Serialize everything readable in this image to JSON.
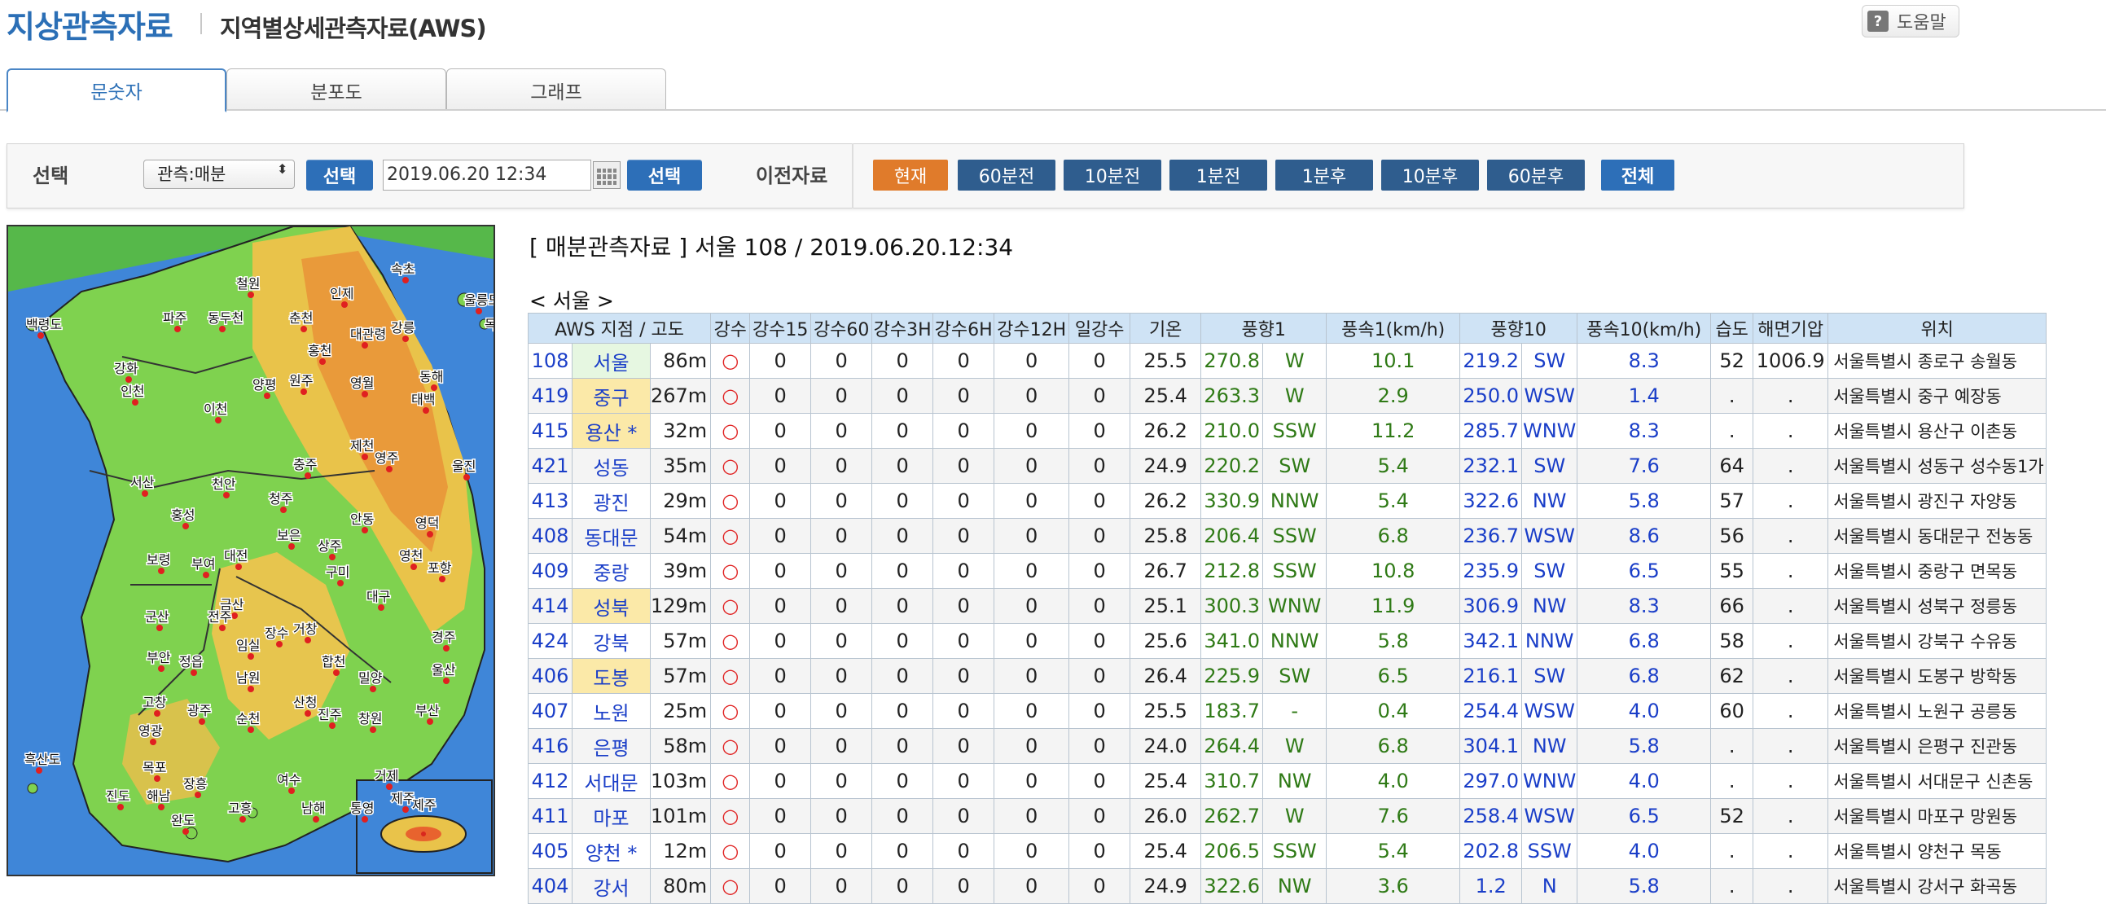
{
  "header": {
    "title": "지상관측자료",
    "subtitle": "지역별상세관측자료(AWS)",
    "help_label": "도움말",
    "help_icon_text": "?"
  },
  "tabs": [
    {
      "label": "문숫자",
      "active": true
    },
    {
      "label": "분포도",
      "active": false
    },
    {
      "label": "그래프",
      "active": false
    }
  ],
  "controls": {
    "select_label": "선택",
    "obs_select_value": "관측:매분",
    "select_button": "선택",
    "datetime_value": "2019.06.20 12:34",
    "select_button2": "선택",
    "prev_label": "이전자료",
    "nav_buttons": [
      "현재",
      "60분전",
      "10분전",
      "1분전",
      "1분후",
      "10분후",
      "60분후",
      "전체"
    ]
  },
  "map": {
    "labels": [
      "속초",
      "철원",
      "인제",
      "춘천",
      "대관령",
      "강릉",
      "동두천",
      "파주",
      "백령도",
      "홍천",
      "동해",
      "원주",
      "영월",
      "울릉도",
      "독도",
      "인천",
      "태백",
      "양평",
      "이천",
      "강화",
      "서산",
      "천안",
      "청주",
      "충주",
      "제천",
      "영주",
      "울진",
      "홍성",
      "보은",
      "상주",
      "안동",
      "영덕",
      "대전",
      "보령",
      "구미",
      "금산",
      "포항",
      "대구",
      "영천",
      "부여",
      "군산",
      "전주",
      "임실",
      "장수",
      "거창",
      "합천",
      "경주",
      "울산",
      "부안",
      "정읍",
      "남원",
      "밀양",
      "산청",
      "진주",
      "창원",
      "부산",
      "고창",
      "광주",
      "순천",
      "영광",
      "목포",
      "장흥",
      "해남",
      "여수",
      "남해",
      "통영",
      "거제",
      "흑산도",
      "진도",
      "고흥",
      "완도",
      "제주",
      "흑산도",
      "진도"
    ],
    "inset_label": "제주"
  },
  "table": {
    "title": "[ 매분관측자료 ] 서울 108 / 2019.06.20.12:34",
    "region_label": "< 서울 >",
    "headers": [
      "AWS 지점 / 고도",
      "강수",
      "강수15",
      "강수60",
      "강수3H",
      "강수6H",
      "강수12H",
      "일강수",
      "기온",
      "풍향1",
      "풍속1(km/h)",
      "풍향10",
      "풍속10(km/h)",
      "습도",
      "해면기압",
      "위치"
    ],
    "rows": [
      {
        "id": "108",
        "name": "서울",
        "alt": "86m",
        "rain": "○",
        "r15": "0",
        "r60": "0",
        "r3h": "0",
        "r6h": "0",
        "r12h": "0",
        "rday": "0",
        "temp": "25.5",
        "wd1": "270.8",
        "wdn1": "W",
        "ws1": "10.1",
        "wd10": "219.2",
        "wdn10": "SW",
        "ws10": "8.3",
        "hum": "52",
        "pres": "1006.9",
        "loc": "서울특별시 종로구 송월동",
        "hl": "green"
      },
      {
        "id": "419",
        "name": "중구",
        "alt": "267m",
        "rain": "○",
        "r15": "0",
        "r60": "0",
        "r3h": "0",
        "r6h": "0",
        "r12h": "0",
        "rday": "0",
        "temp": "25.4",
        "wd1": "263.3",
        "wdn1": "W",
        "ws1": "2.9",
        "wd10": "250.0",
        "wdn10": "WSW",
        "ws10": "1.4",
        "hum": ".",
        "pres": ".",
        "loc": "서울특별시 중구 예장동",
        "hl": "yellow"
      },
      {
        "id": "415",
        "name": "용산 *",
        "alt": "32m",
        "rain": "○",
        "r15": "0",
        "r60": "0",
        "r3h": "0",
        "r6h": "0",
        "r12h": "0",
        "rday": "0",
        "temp": "26.2",
        "wd1": "210.0",
        "wdn1": "SSW",
        "ws1": "11.2",
        "wd10": "285.7",
        "wdn10": "WNW",
        "ws10": "8.3",
        "hum": ".",
        "pres": ".",
        "loc": "서울특별시 용산구 이촌동",
        "hl": "yellow"
      },
      {
        "id": "421",
        "name": "성동",
        "alt": "35m",
        "rain": "○",
        "r15": "0",
        "r60": "0",
        "r3h": "0",
        "r6h": "0",
        "r12h": "0",
        "rday": "0",
        "temp": "24.9",
        "wd1": "220.2",
        "wdn1": "SW",
        "ws1": "5.4",
        "wd10": "232.1",
        "wdn10": "SW",
        "ws10": "7.6",
        "hum": "64",
        "pres": ".",
        "loc": "서울특별시 성동구 성수동1가",
        "hl": ""
      },
      {
        "id": "413",
        "name": "광진",
        "alt": "29m",
        "rain": "○",
        "r15": "0",
        "r60": "0",
        "r3h": "0",
        "r6h": "0",
        "r12h": "0",
        "rday": "0",
        "temp": "26.2",
        "wd1": "330.9",
        "wdn1": "NNW",
        "ws1": "5.4",
        "wd10": "322.6",
        "wdn10": "NW",
        "ws10": "5.8",
        "hum": "57",
        "pres": ".",
        "loc": "서울특별시 광진구 자양동",
        "hl": ""
      },
      {
        "id": "408",
        "name": "동대문",
        "alt": "54m",
        "rain": "○",
        "r15": "0",
        "r60": "0",
        "r3h": "0",
        "r6h": "0",
        "r12h": "0",
        "rday": "0",
        "temp": "25.8",
        "wd1": "206.4",
        "wdn1": "SSW",
        "ws1": "6.8",
        "wd10": "236.7",
        "wdn10": "WSW",
        "ws10": "8.6",
        "hum": "56",
        "pres": ".",
        "loc": "서울특별시 동대문구 전농동",
        "hl": ""
      },
      {
        "id": "409",
        "name": "중랑",
        "alt": "39m",
        "rain": "○",
        "r15": "0",
        "r60": "0",
        "r3h": "0",
        "r6h": "0",
        "r12h": "0",
        "rday": "0",
        "temp": "26.7",
        "wd1": "212.8",
        "wdn1": "SSW",
        "ws1": "10.8",
        "wd10": "235.9",
        "wdn10": "SW",
        "ws10": "6.5",
        "hum": "55",
        "pres": ".",
        "loc": "서울특별시 중랑구 면목동",
        "hl": ""
      },
      {
        "id": "414",
        "name": "성북",
        "alt": "129m",
        "rain": "○",
        "r15": "0",
        "r60": "0",
        "r3h": "0",
        "r6h": "0",
        "r12h": "0",
        "rday": "0",
        "temp": "25.1",
        "wd1": "300.3",
        "wdn1": "WNW",
        "ws1": "11.9",
        "wd10": "306.9",
        "wdn10": "NW",
        "ws10": "8.3",
        "hum": "66",
        "pres": ".",
        "loc": "서울특별시 성북구 정릉동",
        "hl": "yellow"
      },
      {
        "id": "424",
        "name": "강북",
        "alt": "57m",
        "rain": "○",
        "r15": "0",
        "r60": "0",
        "r3h": "0",
        "r6h": "0",
        "r12h": "0",
        "rday": "0",
        "temp": "25.6",
        "wd1": "341.0",
        "wdn1": "NNW",
        "ws1": "5.8",
        "wd10": "342.1",
        "wdn10": "NNW",
        "ws10": "6.8",
        "hum": "58",
        "pres": ".",
        "loc": "서울특별시 강북구 수유동",
        "hl": ""
      },
      {
        "id": "406",
        "name": "도봉",
        "alt": "57m",
        "rain": "○",
        "r15": "0",
        "r60": "0",
        "r3h": "0",
        "r6h": "0",
        "r12h": "0",
        "rday": "0",
        "temp": "26.4",
        "wd1": "225.9",
        "wdn1": "SW",
        "ws1": "6.5",
        "wd10": "216.1",
        "wdn10": "SW",
        "ws10": "6.8",
        "hum": "62",
        "pres": ".",
        "loc": "서울특별시 도봉구 방학동",
        "hl": "yellow"
      },
      {
        "id": "407",
        "name": "노원",
        "alt": "25m",
        "rain": "○",
        "r15": "0",
        "r60": "0",
        "r3h": "0",
        "r6h": "0",
        "r12h": "0",
        "rday": "0",
        "temp": "25.5",
        "wd1": "183.7",
        "wdn1": "-",
        "ws1": "0.4",
        "wd10": "254.4",
        "wdn10": "WSW",
        "ws10": "4.0",
        "hum": "60",
        "pres": ".",
        "loc": "서울특별시 노원구 공릉동",
        "hl": ""
      },
      {
        "id": "416",
        "name": "은평",
        "alt": "58m",
        "rain": "○",
        "r15": "0",
        "r60": "0",
        "r3h": "0",
        "r6h": "0",
        "r12h": "0",
        "rday": "0",
        "temp": "24.0",
        "wd1": "264.4",
        "wdn1": "W",
        "ws1": "6.8",
        "wd10": "304.1",
        "wdn10": "NW",
        "ws10": "5.8",
        "hum": ".",
        "pres": ".",
        "loc": "서울특별시 은평구 진관동",
        "hl": ""
      },
      {
        "id": "412",
        "name": "서대문",
        "alt": "103m",
        "rain": "○",
        "r15": "0",
        "r60": "0",
        "r3h": "0",
        "r6h": "0",
        "r12h": "0",
        "rday": "0",
        "temp": "25.4",
        "wd1": "310.7",
        "wdn1": "NW",
        "ws1": "4.0",
        "wd10": "297.0",
        "wdn10": "WNW",
        "ws10": "4.0",
        "hum": ".",
        "pres": ".",
        "loc": "서울특별시 서대문구 신촌동",
        "hl": ""
      },
      {
        "id": "411",
        "name": "마포",
        "alt": "101m",
        "rain": "○",
        "r15": "0",
        "r60": "0",
        "r3h": "0",
        "r6h": "0",
        "r12h": "0",
        "rday": "0",
        "temp": "26.0",
        "wd1": "262.7",
        "wdn1": "W",
        "ws1": "7.6",
        "wd10": "258.4",
        "wdn10": "WSW",
        "ws10": "6.5",
        "hum": "52",
        "pres": ".",
        "loc": "서울특별시 마포구 망원동",
        "hl": ""
      },
      {
        "id": "405",
        "name": "양천 *",
        "alt": "12m",
        "rain": "○",
        "r15": "0",
        "r60": "0",
        "r3h": "0",
        "r6h": "0",
        "r12h": "0",
        "rday": "0",
        "temp": "25.4",
        "wd1": "206.5",
        "wdn1": "SSW",
        "ws1": "5.4",
        "wd10": "202.8",
        "wdn10": "SSW",
        "ws10": "4.0",
        "hum": ".",
        "pres": ".",
        "loc": "서울특별시 양천구 목동",
        "hl": ""
      },
      {
        "id": "404",
        "name": "강서",
        "alt": "80m",
        "rain": "○",
        "r15": "0",
        "r60": "0",
        "r3h": "0",
        "r6h": "0",
        "r12h": "0",
        "rday": "0",
        "temp": "24.9",
        "wd1": "322.6",
        "wdn1": "NW",
        "ws1": "3.6",
        "wd10": "1.2",
        "wdn10": "N",
        "ws10": "5.8",
        "hum": ".",
        "pres": ".",
        "loc": "서울특별시 강서구 화곡동",
        "hl": ""
      }
    ]
  },
  "colors": {
    "accent_blue": "#2b6fb6",
    "button_blue": "#2d6fb8",
    "nav_dark": "#2f5d8e",
    "nav_current": "#e07b2b",
    "header_cell": "#cfe3f5",
    "row_highlight_yellow": "#fbe9a8",
    "row_highlight_green": "#e6f7e1",
    "station_link": "#1a3ec8",
    "wind1_green": "#2f7a16",
    "rain_red": "#e02020",
    "sea": "#3f86d8"
  }
}
